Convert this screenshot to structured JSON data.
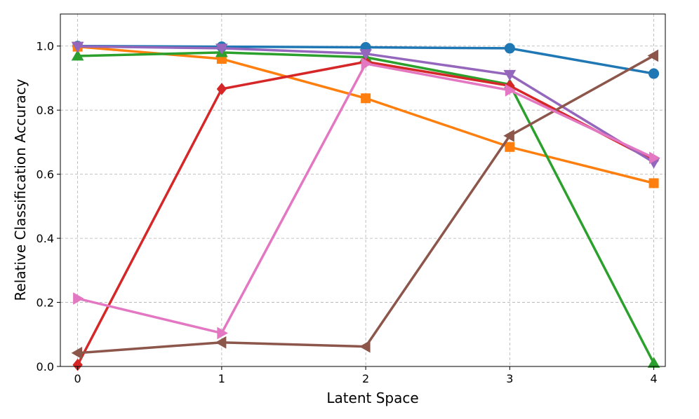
{
  "chart_data": {
    "type": "line",
    "title": "",
    "xlabel": "Latent Space",
    "ylabel": "Relative Classification Accuracy",
    "x": [
      0,
      1,
      2,
      3,
      4
    ],
    "xticks": [
      "0",
      "1",
      "2",
      "3",
      "4"
    ],
    "yticks": [
      "0.0",
      "0.2",
      "0.4",
      "0.6",
      "0.8",
      "1.0"
    ],
    "xlim": [
      -0.12,
      4.08
    ],
    "ylim": [
      0.0,
      1.1
    ],
    "grid": true,
    "series": [
      {
        "color": "#1f77b4",
        "marker": "circle",
        "values": [
          1.0,
          0.998,
          0.996,
          0.993,
          0.914
        ]
      },
      {
        "color": "#ff7f0e",
        "marker": "square",
        "values": [
          0.998,
          0.96,
          0.837,
          0.685,
          0.572
        ]
      },
      {
        "color": "#2ca02c",
        "marker": "triangle-up",
        "values": [
          0.969,
          0.98,
          0.965,
          0.88,
          0.01
        ]
      },
      {
        "color": "#d62728",
        "marker": "diamond",
        "values": [
          0.005,
          0.866,
          0.951,
          0.876,
          0.642
        ]
      },
      {
        "color": "#9467bd",
        "marker": "triangle-down",
        "values": [
          0.999,
          0.993,
          0.976,
          0.911,
          0.637
        ]
      },
      {
        "color": "#8c564b",
        "marker": "triangle-left",
        "values": [
          0.042,
          0.075,
          0.062,
          0.72,
          0.97
        ]
      },
      {
        "color": "#e377c2",
        "marker": "triangle-right",
        "values": [
          0.212,
          0.104,
          0.945,
          0.862,
          0.651
        ]
      }
    ]
  }
}
